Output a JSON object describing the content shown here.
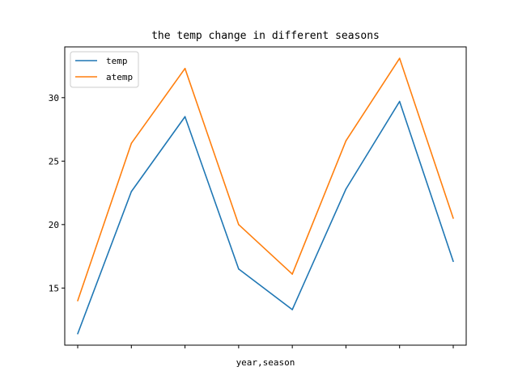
{
  "chart_data": {
    "type": "line",
    "title": "the temp change in different seasons",
    "xlabel": "year,season",
    "ylabel": "",
    "x": [
      0,
      1,
      2,
      3,
      4,
      5,
      6,
      7
    ],
    "x_tick_labels": [
      "",
      "",
      "",
      "",
      "",
      "",
      "",
      ""
    ],
    "ylim": [
      10.5,
      34.0
    ],
    "yticks": [
      15,
      20,
      25,
      30
    ],
    "grid": false,
    "legend_position": "upper-left",
    "series": [
      {
        "name": "temp",
        "color": "#1f77b4",
        "values": [
          11.4,
          22.6,
          28.5,
          16.5,
          13.3,
          22.8,
          29.7,
          17.1
        ]
      },
      {
        "name": "atemp",
        "color": "#ff7f0e",
        "values": [
          14.0,
          26.4,
          32.3,
          20.0,
          16.1,
          26.6,
          33.1,
          20.5
        ]
      }
    ]
  }
}
